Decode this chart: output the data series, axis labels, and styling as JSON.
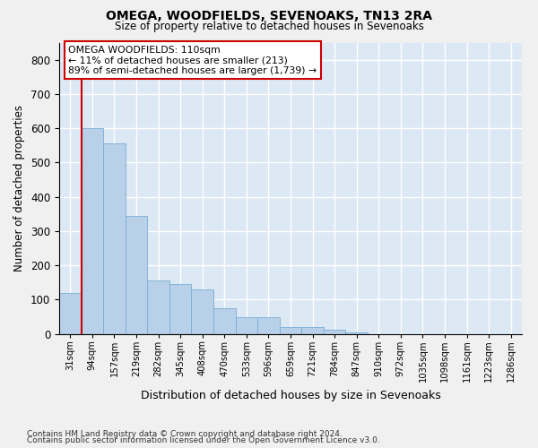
{
  "title": "OMEGA, WOODFIELDS, SEVENOAKS, TN13 2RA",
  "subtitle": "Size of property relative to detached houses in Sevenoaks",
  "xlabel": "Distribution of detached houses by size in Sevenoaks",
  "ylabel": "Number of detached properties",
  "categories": [
    "31sqm",
    "94sqm",
    "157sqm",
    "219sqm",
    "282sqm",
    "345sqm",
    "408sqm",
    "470sqm",
    "533sqm",
    "596sqm",
    "659sqm",
    "721sqm",
    "784sqm",
    "847sqm",
    "910sqm",
    "972sqm",
    "1035sqm",
    "1098sqm",
    "1161sqm",
    "1223sqm",
    "1286sqm"
  ],
  "values": [
    120,
    600,
    555,
    345,
    155,
    145,
    130,
    75,
    48,
    48,
    20,
    20,
    12,
    5,
    0,
    0,
    0,
    0,
    0,
    0,
    0
  ],
  "bar_color": "#b8d0e8",
  "bar_edge_color": "#7aadd4",
  "background_color": "#dde8f5",
  "grid_color": "#ffffff",
  "annotation_text": "OMEGA WOODFIELDS: 110sqm\n← 11% of detached houses are smaller (213)\n89% of semi-detached houses are larger (1,739) →",
  "annotation_box_color": "#ffffff",
  "annotation_box_edge": "#cc0000",
  "vline_color": "#cc0000",
  "vline_x_index": 1,
  "ylim": [
    0,
    850
  ],
  "yticks": [
    0,
    100,
    200,
    300,
    400,
    500,
    600,
    700,
    800
  ],
  "footnote1": "Contains HM Land Registry data © Crown copyright and database right 2024.",
  "footnote2": "Contains public sector information licensed under the Open Government Licence v3.0.",
  "fig_bg": "#f0f0f0"
}
